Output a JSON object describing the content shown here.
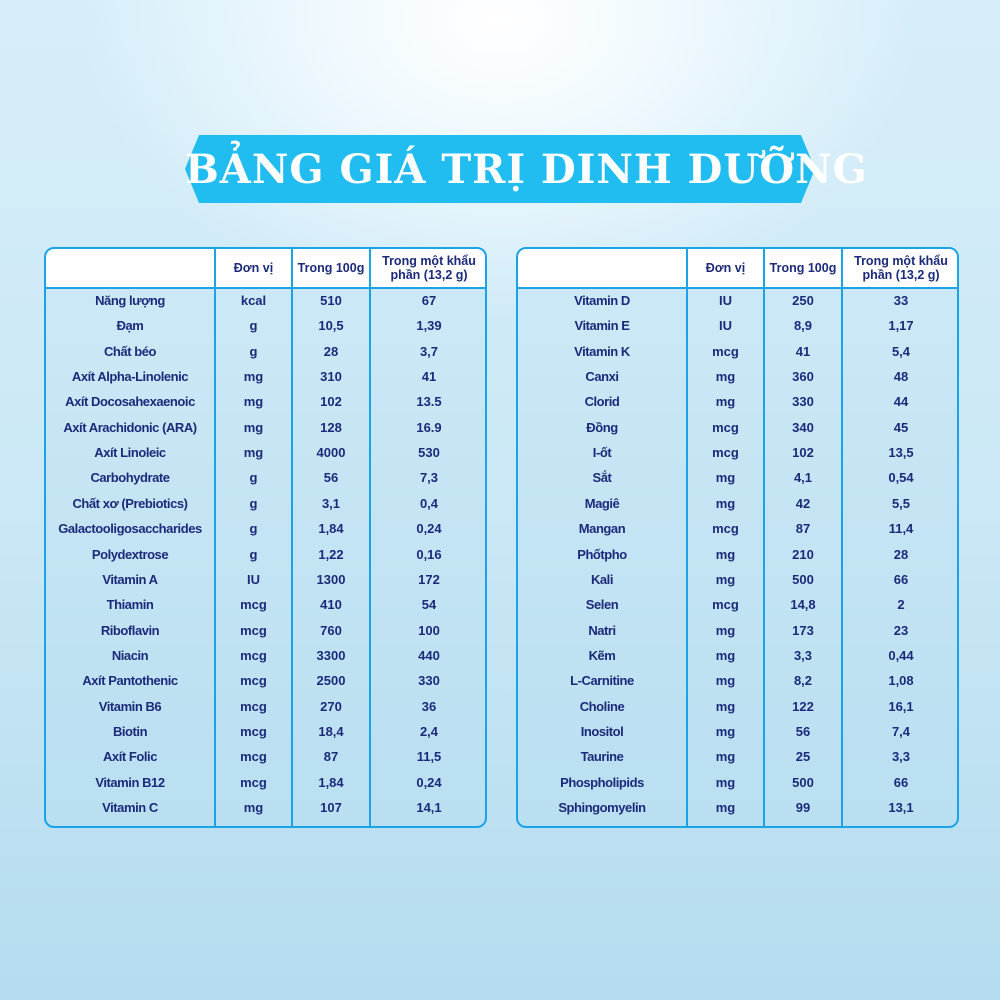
{
  "title": "BẢNG GIÁ TRỊ DINH DƯỠNG",
  "colors": {
    "banner": "#22bdf0",
    "border": "#1aa3e6",
    "text": "#1b2a7a"
  },
  "headers": [
    "",
    "Đơn vị",
    "Trong 100g",
    "Trong một khẩu phần (13,2 g)"
  ],
  "left_rows": [
    [
      "Năng lượng",
      "kcal",
      "510",
      "67"
    ],
    [
      "Đạm",
      "g",
      "10,5",
      "1,39"
    ],
    [
      "Chất béo",
      "g",
      "28",
      "3,7"
    ],
    [
      "Axít Alpha-Linolenic",
      "mg",
      "310",
      "41"
    ],
    [
      "Axít Docosahexaenoic",
      "mg",
      "102",
      "13.5"
    ],
    [
      "Axít Arachidonic (ARA)",
      "mg",
      "128",
      "16.9"
    ],
    [
      "Axít Linoleic",
      "mg",
      "4000",
      "530"
    ],
    [
      "Carbohydrate",
      "g",
      "56",
      "7,3"
    ],
    [
      "Chất xơ (Prebiotics)",
      "g",
      "3,1",
      "0,4"
    ],
    [
      "Galactooligosaccharides",
      "g",
      "1,84",
      "0,24"
    ],
    [
      "Polydextrose",
      "g",
      "1,22",
      "0,16"
    ],
    [
      "Vitamin A",
      "IU",
      "1300",
      "172"
    ],
    [
      "Thiamin",
      "mcg",
      "410",
      "54"
    ],
    [
      "Riboflavin",
      "mcg",
      "760",
      "100"
    ],
    [
      "Niacin",
      "mcg",
      "3300",
      "440"
    ],
    [
      "Axít Pantothenic",
      "mcg",
      "2500",
      "330"
    ],
    [
      "Vitamin B6",
      "mcg",
      "270",
      "36"
    ],
    [
      "Biotin",
      "mcg",
      "18,4",
      "2,4"
    ],
    [
      "Axít Folic",
      "mcg",
      "87",
      "11,5"
    ],
    [
      "Vitamin B12",
      "mcg",
      "1,84",
      "0,24"
    ],
    [
      "Vitamin C",
      "mg",
      "107",
      "14,1"
    ]
  ],
  "right_rows": [
    [
      "Vitamin D",
      "IU",
      "250",
      "33"
    ],
    [
      "Vitamin E",
      "IU",
      "8,9",
      "1,17"
    ],
    [
      "Vitamin K",
      "mcg",
      "41",
      "5,4"
    ],
    [
      "Canxi",
      "mg",
      "360",
      "48"
    ],
    [
      "Clorid",
      "mg",
      "330",
      "44"
    ],
    [
      "Đồng",
      "mcg",
      "340",
      "45"
    ],
    [
      "I-ốt",
      "mcg",
      "102",
      "13,5"
    ],
    [
      "Sắt",
      "mg",
      "4,1",
      "0,54"
    ],
    [
      "Magiê",
      "mg",
      "42",
      "5,5"
    ],
    [
      "Mangan",
      "mcg",
      "87",
      "11,4"
    ],
    [
      "Phốtpho",
      "mg",
      "210",
      "28"
    ],
    [
      "Kali",
      "mg",
      "500",
      "66"
    ],
    [
      "Selen",
      "mcg",
      "14,8",
      "2"
    ],
    [
      "Natri",
      "mg",
      "173",
      "23"
    ],
    [
      "Kẽm",
      "mg",
      "3,3",
      "0,44"
    ],
    [
      "L-Carnitine",
      "mg",
      "8,2",
      "1,08"
    ],
    [
      "Choline",
      "mg",
      "122",
      "16,1"
    ],
    [
      "Inositol",
      "mg",
      "56",
      "7,4"
    ],
    [
      "Taurine",
      "mg",
      "25",
      "3,3"
    ],
    [
      "Phospholipids",
      "mg",
      "500",
      "66"
    ],
    [
      "Sphingomyelin",
      "mg",
      "99",
      "13,1"
    ]
  ]
}
